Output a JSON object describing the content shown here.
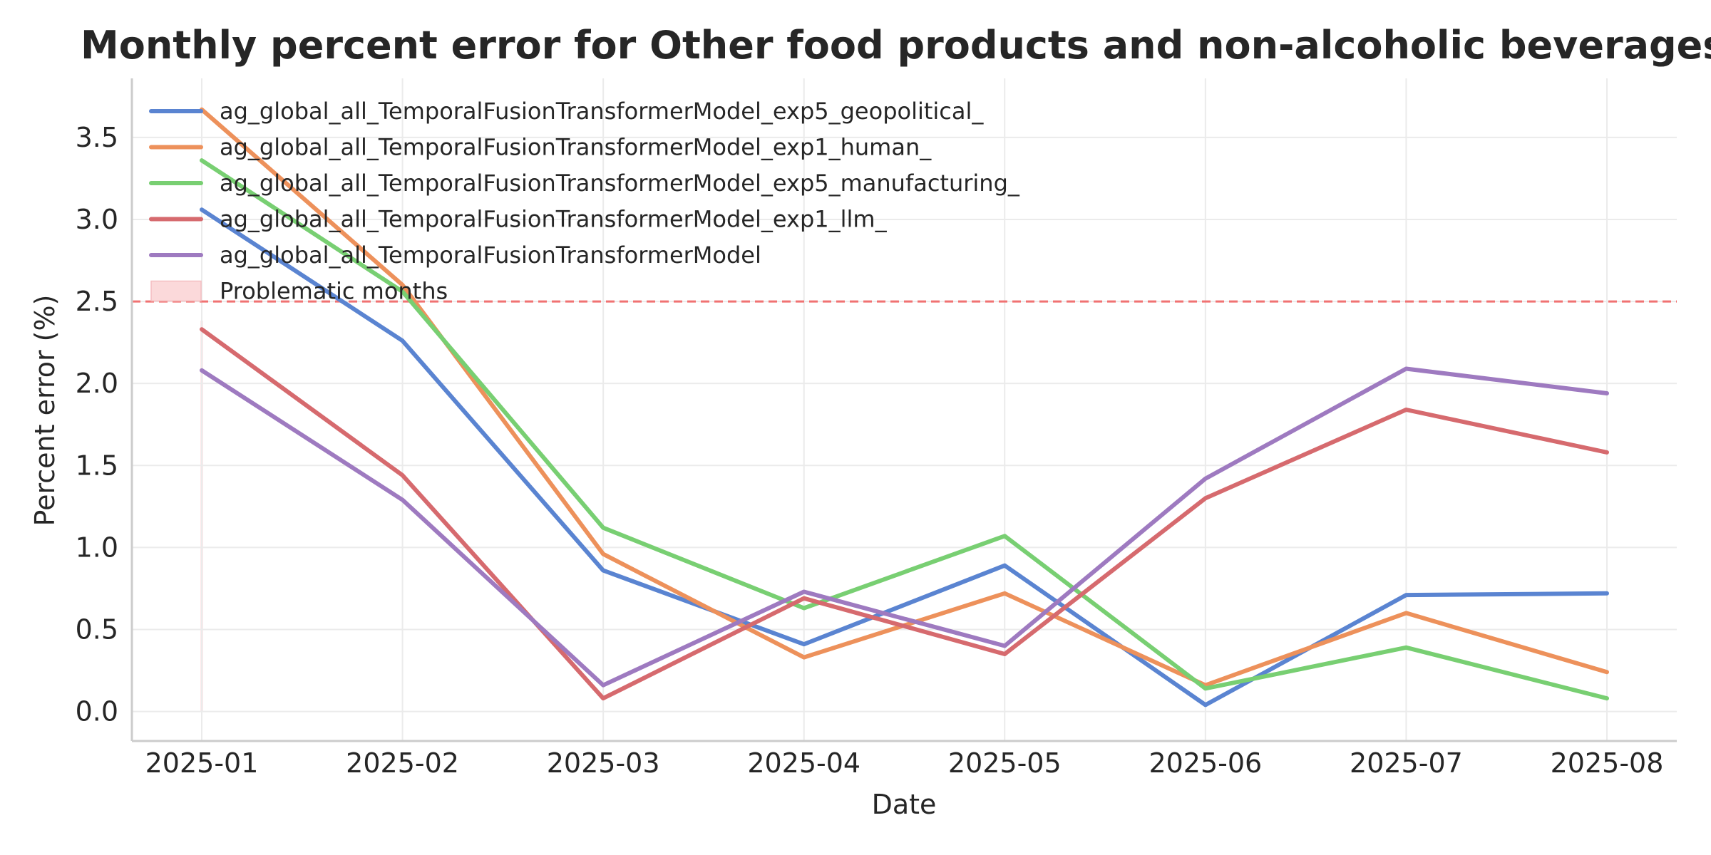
{
  "chart_data": {
    "type": "line",
    "title": "Monthly percent error for Other food products and non-alcoholic beverages",
    "xlabel": "Date",
    "ylabel": "Percent error (%)",
    "categories": [
      "2025-01",
      "2025-02",
      "2025-03",
      "2025-04",
      "2025-05",
      "2025-06",
      "2025-07",
      "2025-08"
    ],
    "yticks": [
      "0.0",
      "0.5",
      "1.0",
      "1.5",
      "2.0",
      "2.5",
      "3.0",
      "3.5"
    ],
    "ylim": [
      -0.18,
      3.86
    ],
    "grid": true,
    "legend_position": "top-left",
    "threshold": {
      "value": 2.5,
      "color": "#f07272",
      "style": "dashed"
    },
    "problematic_months": {
      "label": "Problematic months",
      "color": "#fbd5d7",
      "months": [
        "2025-01"
      ]
    },
    "series": [
      {
        "name": "ag_global_all_TemporalFusionTransformerModel_exp5_geopolitical_",
        "color": "#5a84d1",
        "values": [
          3.06,
          2.26,
          0.86,
          0.41,
          0.89,
          0.04,
          0.71,
          0.72
        ]
      },
      {
        "name": "ag_global_all_TemporalFusionTransformerModel_exp1_human_",
        "color": "#ed915b",
        "values": [
          3.67,
          2.6,
          0.96,
          0.33,
          0.72,
          0.16,
          0.6,
          0.24
        ]
      },
      {
        "name": "ag_global_all_TemporalFusionTransformerModel_exp5_manufacturing_",
        "color": "#78cf72",
        "values": [
          3.36,
          2.56,
          1.12,
          0.63,
          1.07,
          0.14,
          0.39,
          0.08
        ]
      },
      {
        "name": "ag_global_all_TemporalFusionTransformerModel_exp1_llm_",
        "color": "#d66a6e",
        "values": [
          2.33,
          1.44,
          0.08,
          0.69,
          0.35,
          1.3,
          1.84,
          1.58
        ]
      },
      {
        "name": "ag_global_all_TemporalFusionTransformerModel",
        "color": "#9e7ac0",
        "values": [
          2.08,
          1.29,
          0.16,
          0.73,
          0.4,
          1.42,
          2.09,
          1.94
        ]
      }
    ]
  }
}
